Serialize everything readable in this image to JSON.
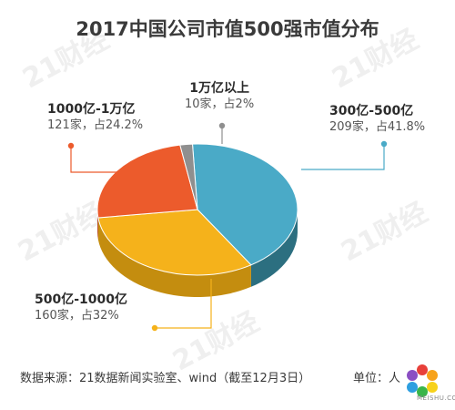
{
  "chart_data": {
    "type": "pie",
    "title": "2017中国公司市值500强市值分布",
    "slices": [
      {
        "label": "300亿-500亿",
        "detail": "209家，占41.8%",
        "count": 209,
        "percent": 41.8,
        "color": "#4aaac7",
        "side_color": "#2c6f80"
      },
      {
        "label": "500亿-1000亿",
        "detail": "160家，占32%",
        "count": 160,
        "percent": 32.0,
        "color": "#f5b21b",
        "side_color": "#c48d0f"
      },
      {
        "label": "1000亿-1万亿",
        "detail": "121家，占24.2%",
        "count": 121,
        "percent": 24.2,
        "color": "#ec5b2c",
        "side_color": "#b7431e"
      },
      {
        "label": "1万亿以上",
        "detail": "10家，占2%",
        "count": 10,
        "percent": 2.0,
        "color": "#8f8f8f",
        "side_color": "#666666"
      }
    ],
    "legend": "callout-labels"
  },
  "source": "数据来源：21数据新闻实验室、wind（截至12月3日）",
  "unit": "单位：人",
  "watermark": "21财经",
  "site_logo": "MEISHU.COM"
}
